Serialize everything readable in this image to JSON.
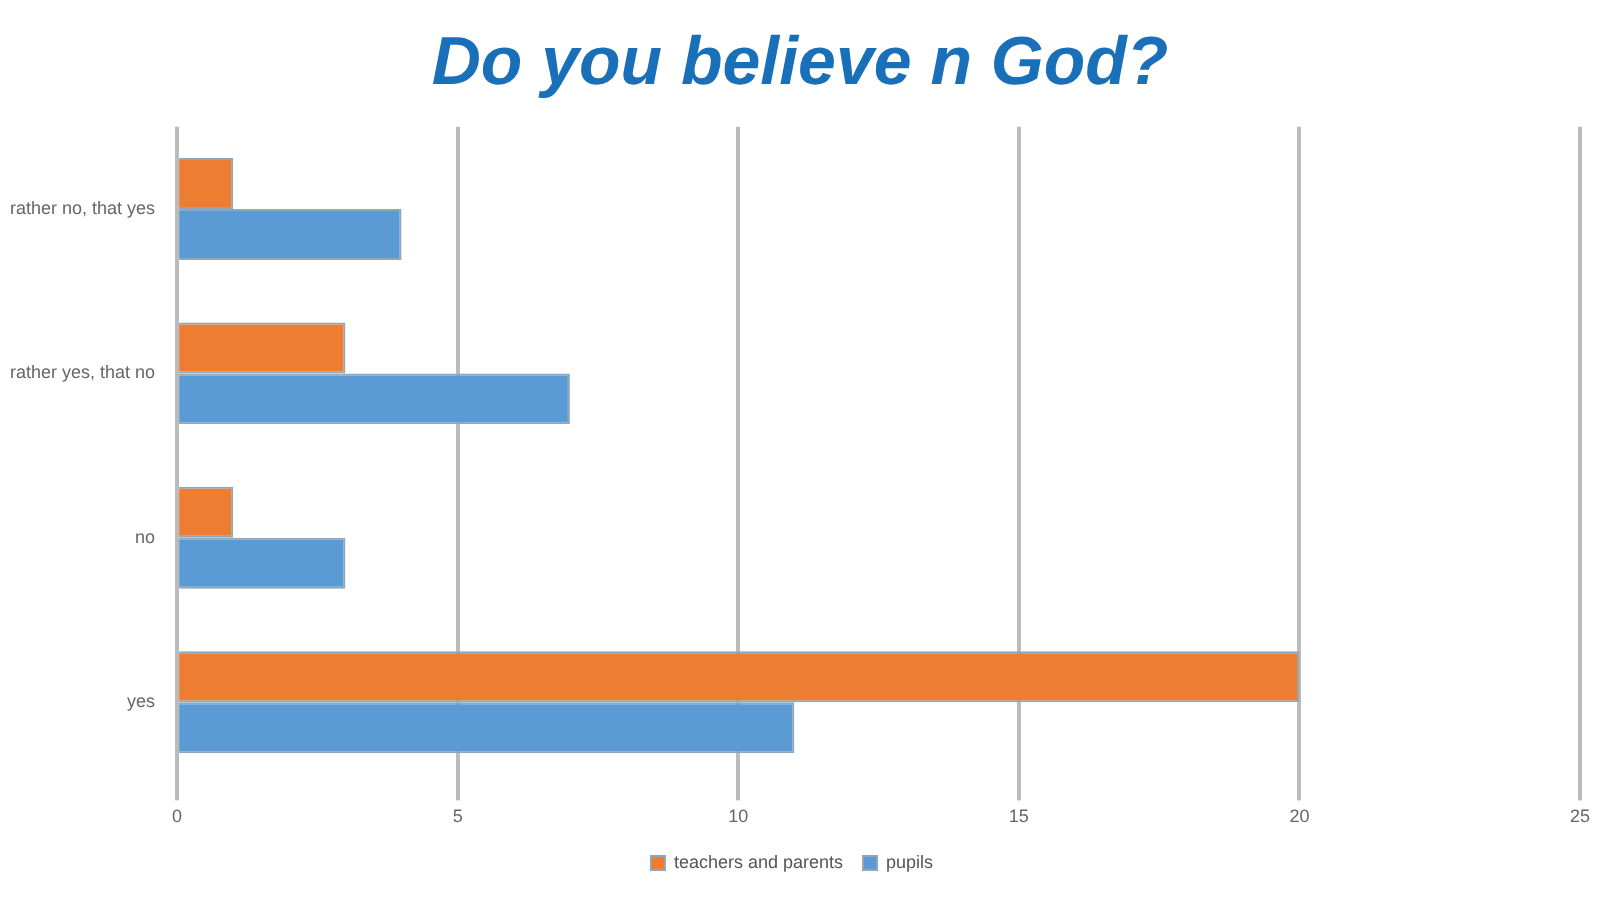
{
  "chart_data": {
    "type": "bar",
    "orientation": "horizontal",
    "title": "Do you believe n God?",
    "categories": [
      "rather no, that yes",
      "rather yes, that no",
      "no",
      "yes"
    ],
    "series": [
      {
        "name": "pupils",
        "color": "#5b9bd5",
        "values": [
          4,
          7,
          3,
          11
        ]
      },
      {
        "name": "teachers and parents",
        "color": "#ed7d31",
        "values": [
          1,
          3,
          1,
          20
        ]
      }
    ],
    "xlim": [
      0,
      25
    ],
    "xticks": [
      0,
      5,
      10,
      15,
      20,
      25
    ],
    "grid": "x",
    "legend": "bottom"
  }
}
